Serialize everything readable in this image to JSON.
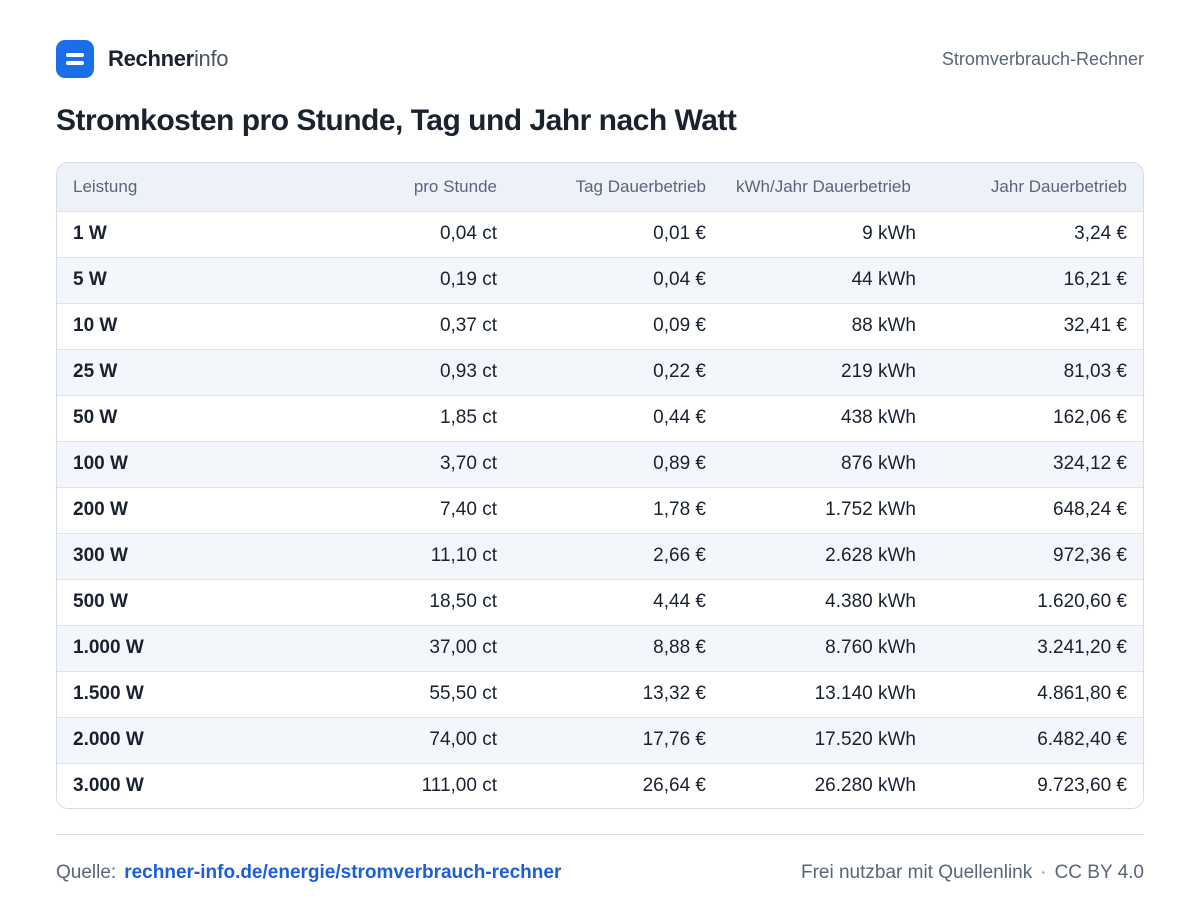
{
  "header": {
    "brand_strong": "Rechner",
    "brand_light": "info",
    "section": "Stromverbrauch-Rechner"
  },
  "title": "Stromkosten pro Stunde, Tag und Jahr nach Watt",
  "table": {
    "columns": [
      "Leistung",
      "pro Stunde",
      "Tag Dauerbetrieb",
      "kWh/Jahr Dauerbetrieb",
      "Jahr Dauerbetrieb"
    ],
    "rows": [
      [
        "1 W",
        "0,04 ct",
        "0,01 €",
        "9 kWh",
        "3,24 €"
      ],
      [
        "5 W",
        "0,19 ct",
        "0,04 €",
        "44 kWh",
        "16,21 €"
      ],
      [
        "10 W",
        "0,37 ct",
        "0,09 €",
        "88 kWh",
        "32,41 €"
      ],
      [
        "25 W",
        "0,93 ct",
        "0,22 €",
        "219 kWh",
        "81,03 €"
      ],
      [
        "50 W",
        "1,85 ct",
        "0,44 €",
        "438 kWh",
        "162,06 €"
      ],
      [
        "100 W",
        "3,70 ct",
        "0,89 €",
        "876 kWh",
        "324,12 €"
      ],
      [
        "200 W",
        "7,40 ct",
        "1,78 €",
        "1.752 kWh",
        "648,24 €"
      ],
      [
        "300 W",
        "11,10 ct",
        "2,66 €",
        "2.628 kWh",
        "972,36 €"
      ],
      [
        "500 W",
        "18,50 ct",
        "4,44 €",
        "4.380 kWh",
        "1.620,60 €"
      ],
      [
        "1.000 W",
        "37,00 ct",
        "8,88 €",
        "8.760 kWh",
        "3.241,20 €"
      ],
      [
        "1.500 W",
        "55,50 ct",
        "13,32 €",
        "13.140 kWh",
        "4.861,80 €"
      ],
      [
        "2.000 W",
        "74,00 ct",
        "17,76 €",
        "17.520 kWh",
        "6.482,40 €"
      ],
      [
        "3.000 W",
        "111,00 ct",
        "26,64 €",
        "26.280 kWh",
        "9.723,60 €"
      ]
    ]
  },
  "footer": {
    "source_label": "Quelle:",
    "source_link": "rechner-info.de/energie/stromverbrauch-rechner",
    "license_text": "Frei nutzbar mit Quellenlink",
    "separator": "·",
    "license": "CC BY 4.0"
  },
  "colors": {
    "brand": "#1a6fe8",
    "link": "#1a5fd6",
    "header_bg": "#edf2f9",
    "stripe_bg": "#f3f6fb"
  },
  "icons": {
    "logo": "equals-logo-icon"
  }
}
